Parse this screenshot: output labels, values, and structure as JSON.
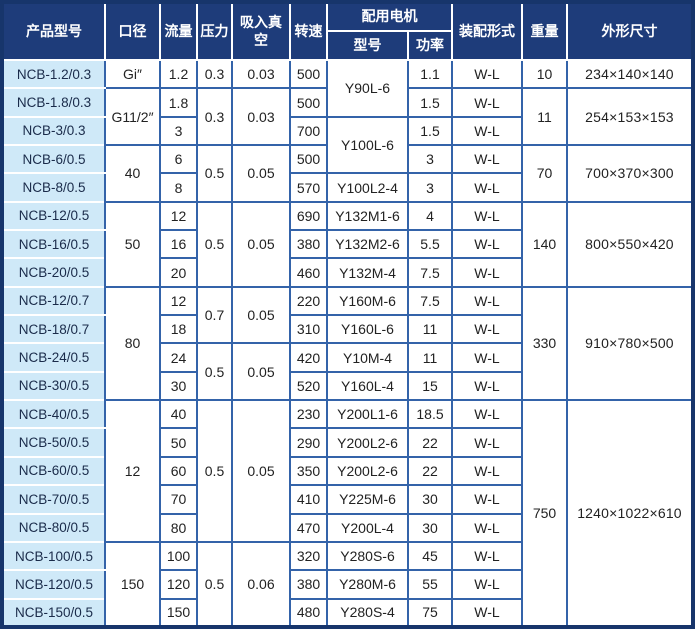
{
  "colors": {
    "header_bg": "#1e3c7a",
    "border_blue": "#3463a9",
    "outer_navy": "#17356b",
    "model_col_bg": "#cfe9f8",
    "cell_bg": "#ffffff",
    "header_text": "#ffffff",
    "cell_text": "#222222",
    "model_text": "#1a2b4a"
  },
  "table": {
    "header": {
      "product_model": "产品型号",
      "diameter": "口径",
      "flow": "流量",
      "pressure": "压力",
      "suction_vacuum": "吸入真空",
      "speed": "转速",
      "motor_group": "配用电机",
      "motor_model": "型号",
      "motor_power": "功率",
      "assembly": "装配形式",
      "weight": "重量",
      "dimensions": "外形尺寸"
    },
    "rows": [
      [
        [
          "model",
          "NCB-1.2/0.3"
        ],
        [
          "diameter",
          "Gi″"
        ],
        [
          "flow",
          "1.2"
        ],
        [
          "pressure",
          "0.3"
        ],
        [
          "vacuum",
          "0.03"
        ],
        [
          "speed",
          "500"
        ],
        [
          "motor_model",
          "Y90L-6",
          2
        ],
        [
          "motor_power",
          "1.1"
        ],
        [
          "assembly",
          "W-L"
        ],
        [
          "weight",
          "10"
        ],
        [
          "dimensions",
          "234×140×140"
        ]
      ],
      [
        [
          "model",
          "NCB-1.8/0.3"
        ],
        [
          "diameter",
          "G11/2″",
          2
        ],
        [
          "flow",
          "1.8"
        ],
        [
          "pressure",
          "0.3",
          2
        ],
        [
          "vacuum",
          "0.03",
          2
        ],
        [
          "speed",
          "500"
        ],
        [
          "motor_power",
          "1.5"
        ],
        [
          "assembly",
          "W-L"
        ],
        [
          "weight",
          "11",
          2
        ],
        [
          "dimensions",
          "254×153×153",
          2
        ]
      ],
      [
        [
          "model",
          "NCB-3/0.3"
        ],
        [
          "flow",
          "3"
        ],
        [
          "speed",
          "700"
        ],
        [
          "motor_model",
          "Y100L-6",
          2
        ],
        [
          "motor_power",
          "1.5"
        ],
        [
          "assembly",
          "W-L"
        ]
      ],
      [
        [
          "model",
          "NCB-6/0.5"
        ],
        [
          "diameter",
          "40",
          2
        ],
        [
          "flow",
          "6"
        ],
        [
          "pressure",
          "0.5",
          2
        ],
        [
          "vacuum",
          "0.05",
          2
        ],
        [
          "speed",
          "500"
        ],
        [
          "motor_power",
          "3"
        ],
        [
          "assembly",
          "W-L"
        ],
        [
          "weight",
          "70",
          2
        ],
        [
          "dimensions",
          "700×370×300",
          2
        ]
      ],
      [
        [
          "model",
          "NCB-8/0.5"
        ],
        [
          "flow",
          "8"
        ],
        [
          "speed",
          "570"
        ],
        [
          "motor_model",
          "Y100L2-4"
        ],
        [
          "motor_power",
          "3"
        ],
        [
          "assembly",
          "W-L"
        ]
      ],
      [
        [
          "model",
          "NCB-12/0.5"
        ],
        [
          "diameter",
          "50",
          3
        ],
        [
          "flow",
          "12"
        ],
        [
          "pressure",
          "0.5",
          3
        ],
        [
          "vacuum",
          "0.05",
          3
        ],
        [
          "speed",
          "690"
        ],
        [
          "motor_model",
          "Y132M1-6"
        ],
        [
          "motor_power",
          "4"
        ],
        [
          "assembly",
          "W-L"
        ],
        [
          "weight",
          "140",
          3
        ],
        [
          "dimensions",
          "800×550×420",
          3
        ]
      ],
      [
        [
          "model",
          "NCB-16/0.5"
        ],
        [
          "flow",
          "16"
        ],
        [
          "speed",
          "380"
        ],
        [
          "motor_model",
          "Y132M2-6"
        ],
        [
          "motor_power",
          "5.5"
        ],
        [
          "assembly",
          "W-L"
        ]
      ],
      [
        [
          "model",
          "NCB-20/0.5"
        ],
        [
          "flow",
          "20"
        ],
        [
          "speed",
          "460"
        ],
        [
          "motor_model",
          "Y132M-4"
        ],
        [
          "motor_power",
          "7.5"
        ],
        [
          "assembly",
          "W-L"
        ]
      ],
      [
        [
          "model",
          "NCB-12/0.7"
        ],
        [
          "diameter",
          "80",
          4
        ],
        [
          "flow",
          "12"
        ],
        [
          "pressure",
          "0.7",
          2
        ],
        [
          "vacuum",
          "0.05",
          2
        ],
        [
          "speed",
          "220"
        ],
        [
          "motor_model",
          "Y160M-6"
        ],
        [
          "motor_power",
          "7.5"
        ],
        [
          "assembly",
          "W-L"
        ],
        [
          "weight",
          "330",
          4
        ],
        [
          "dimensions",
          "910×780×500",
          4
        ]
      ],
      [
        [
          "model",
          "NCB-18/0.7"
        ],
        [
          "flow",
          "18"
        ],
        [
          "speed",
          "310"
        ],
        [
          "motor_model",
          "Y160L-6"
        ],
        [
          "motor_power",
          "11"
        ],
        [
          "assembly",
          "W-L"
        ]
      ],
      [
        [
          "model",
          "NCB-24/0.5"
        ],
        [
          "flow",
          "24"
        ],
        [
          "pressure",
          "0.5",
          2
        ],
        [
          "vacuum",
          "0.05",
          2
        ],
        [
          "speed",
          "420"
        ],
        [
          "motor_model",
          "Y10M-4"
        ],
        [
          "motor_power",
          "11"
        ],
        [
          "assembly",
          "W-L"
        ]
      ],
      [
        [
          "model",
          "NCB-30/0.5"
        ],
        [
          "flow",
          "30"
        ],
        [
          "speed",
          "520"
        ],
        [
          "motor_model",
          "Y160L-4"
        ],
        [
          "motor_power",
          "15"
        ],
        [
          "assembly",
          "W-L"
        ]
      ],
      [
        [
          "model",
          "NCB-40/0.5"
        ],
        [
          "diameter",
          "12",
          5
        ],
        [
          "flow",
          "40"
        ],
        [
          "pressure",
          "0.5",
          5
        ],
        [
          "vacuum",
          "0.05",
          5
        ],
        [
          "speed",
          "230"
        ],
        [
          "motor_model",
          "Y200L1-6"
        ],
        [
          "motor_power",
          "18.5"
        ],
        [
          "assembly",
          "W-L"
        ],
        [
          "weight",
          "750",
          8
        ],
        [
          "dimensions",
          "1240×1022×610",
          8
        ]
      ],
      [
        [
          "model",
          "NCB-50/0.5"
        ],
        [
          "flow",
          "50"
        ],
        [
          "speed",
          "290"
        ],
        [
          "motor_model",
          "Y200L2-6"
        ],
        [
          "motor_power",
          "22"
        ],
        [
          "assembly",
          "W-L"
        ]
      ],
      [
        [
          "model",
          "NCB-60/0.5"
        ],
        [
          "flow",
          "60"
        ],
        [
          "speed",
          "350"
        ],
        [
          "motor_model",
          "Y200L2-6"
        ],
        [
          "motor_power",
          "22"
        ],
        [
          "assembly",
          "W-L"
        ]
      ],
      [
        [
          "model",
          "NCB-70/0.5"
        ],
        [
          "flow",
          "70"
        ],
        [
          "speed",
          "410"
        ],
        [
          "motor_model",
          "Y225M-6"
        ],
        [
          "motor_power",
          "30"
        ],
        [
          "assembly",
          "W-L"
        ]
      ],
      [
        [
          "model",
          "NCB-80/0.5"
        ],
        [
          "flow",
          "80"
        ],
        [
          "speed",
          "470"
        ],
        [
          "motor_model",
          "Y200L-4"
        ],
        [
          "motor_power",
          "30"
        ],
        [
          "assembly",
          "W-L"
        ]
      ],
      [
        [
          "model",
          "NCB-100/0.5"
        ],
        [
          "diameter",
          "150",
          3
        ],
        [
          "flow",
          "100"
        ],
        [
          "pressure",
          "0.5",
          3
        ],
        [
          "vacuum",
          "0.06",
          3
        ],
        [
          "speed",
          "320"
        ],
        [
          "motor_model",
          "Y280S-6"
        ],
        [
          "motor_power",
          "45"
        ],
        [
          "assembly",
          "W-L"
        ]
      ],
      [
        [
          "model",
          "NCB-120/0.5"
        ],
        [
          "flow",
          "120"
        ],
        [
          "speed",
          "380"
        ],
        [
          "motor_model",
          "Y280M-6"
        ],
        [
          "motor_power",
          "55"
        ],
        [
          "assembly",
          "W-L"
        ]
      ],
      [
        [
          "model",
          "NCB-150/0.5"
        ],
        [
          "flow",
          "150"
        ],
        [
          "speed",
          "480"
        ],
        [
          "motor_model",
          "Y280S-4"
        ],
        [
          "motor_power",
          "75"
        ],
        [
          "assembly",
          "W-L"
        ]
      ]
    ]
  }
}
